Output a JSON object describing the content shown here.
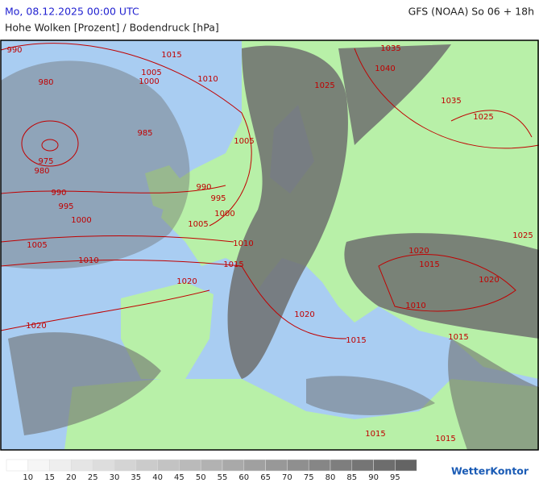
{
  "header": {
    "valid_time": "Mo, 08.12.2025 00:00 UTC",
    "model_run": "GFS (NOAA) So 06 + 18h",
    "subtitle": "Hohe Wolken [Prozent] / Bodendruck [hPa]"
  },
  "isobar_labels": [
    990,
    1015,
    1005,
    1000,
    1010,
    980,
    985,
    1005,
    975,
    980,
    990,
    990,
    995,
    995,
    1000,
    1000,
    1005,
    1005,
    1010,
    1015,
    1010,
    1020,
    1020,
    1020,
    1015,
    1035,
    1040,
    1025,
    1035,
    1025,
    1025,
    1020,
    1015,
    1020,
    1010,
    1015,
    1015,
    1015
  ],
  "legend": {
    "labels": [
      10,
      15,
      20,
      25,
      30,
      35,
      40,
      45,
      50,
      55,
      60,
      65,
      70,
      75,
      80,
      85,
      90,
      95
    ]
  },
  "logo": "WetterKontor"
}
